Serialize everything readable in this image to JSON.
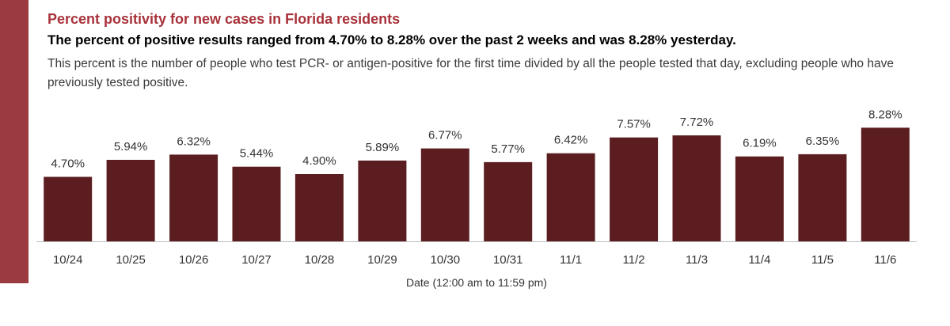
{
  "colors": {
    "accent_bar": "#9b3a3f",
    "title": "#a8323a",
    "bar_fill": "#5b1d1f"
  },
  "header": {
    "title": "Percent positivity for new cases in Florida residents",
    "subtitle": "The percent of positive results ranged from 4.70% to 8.28% over the past 2 weeks and was 8.28% yesterday.",
    "description": "This percent is the number of people who test PCR- or antigen-positive for the first time divided by all the people tested that day, excluding people who have previously tested positive."
  },
  "chart_data": {
    "type": "bar",
    "title": "Percent positivity for new cases in Florida residents",
    "xlabel": "Date (12:00 am to 11:59 pm)",
    "ylabel": "",
    "categories": [
      "10/24",
      "10/25",
      "10/26",
      "10/27",
      "10/28",
      "10/29",
      "10/30",
      "10/31",
      "11/1",
      "11/2",
      "11/3",
      "11/4",
      "11/5",
      "11/6"
    ],
    "values": [
      4.7,
      5.94,
      6.32,
      5.44,
      4.9,
      5.89,
      6.77,
      5.77,
      6.42,
      7.57,
      7.72,
      6.19,
      6.35,
      8.28
    ],
    "labels": [
      "4.70%",
      "5.94%",
      "6.32%",
      "5.44%",
      "4.90%",
      "5.89%",
      "6.77%",
      "5.77%",
      "6.42%",
      "7.57%",
      "7.72%",
      "6.19%",
      "6.35%",
      "8.28%"
    ],
    "ylim": [
      0,
      9
    ],
    "grid": false,
    "legend": "none"
  }
}
